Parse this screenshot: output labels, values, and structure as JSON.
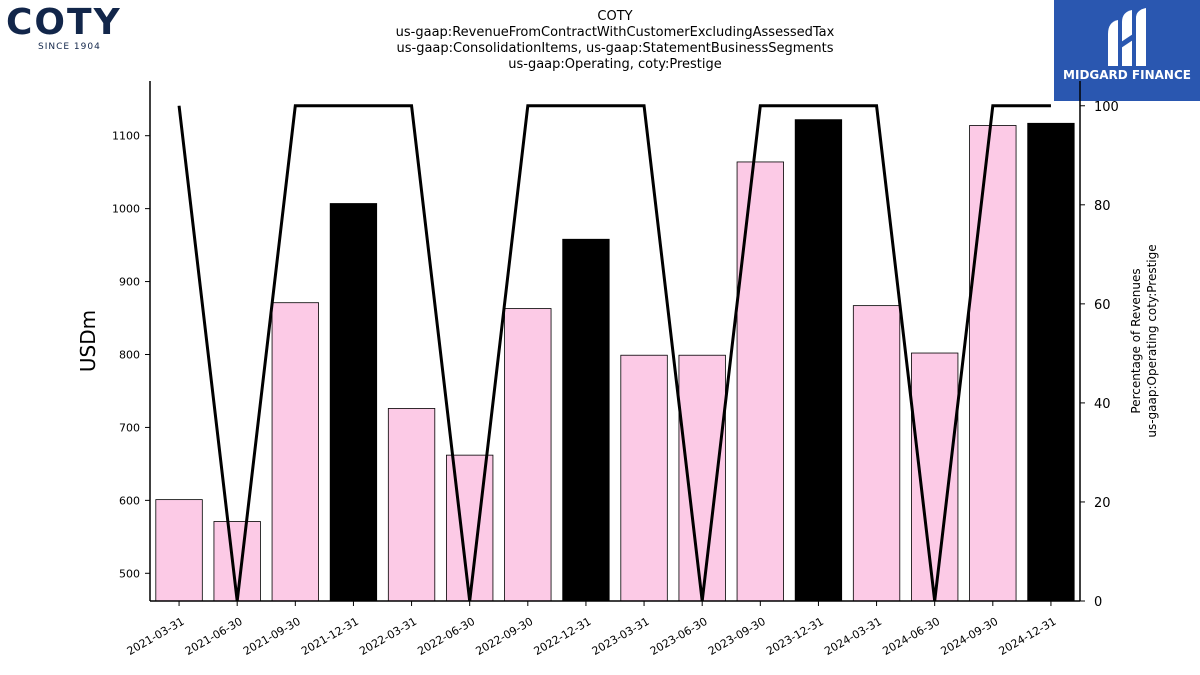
{
  "logos": {
    "left": {
      "word": "COTY",
      "since": "SINCE 1904"
    },
    "right": {
      "text": "MIDGARD FINANCE"
    }
  },
  "chart_data": {
    "type": "bar",
    "title": [
      "COTY",
      "us-gaap:RevenueFromContractWithCustomerExcludingAssessedTax",
      "us-gaap:ConsolidationItems, us-gaap:StatementBusinessSegments",
      "us-gaap:Operating, coty:Prestige"
    ],
    "xlabel": "",
    "ylabel": "USDm",
    "y2label": [
      "Percentage of Revenues",
      "us-gaap:Operating coty:Prestige"
    ],
    "categories": [
      "2021-03-31",
      "2021-06-30",
      "2021-09-30",
      "2021-12-31",
      "2022-03-31",
      "2022-06-30",
      "2022-09-30",
      "2022-12-31",
      "2023-03-31",
      "2023-06-30",
      "2023-09-30",
      "2023-12-31",
      "2024-03-31",
      "2024-06-30",
      "2024-09-30",
      "2024-12-31"
    ],
    "values": [
      601,
      571,
      871,
      1007,
      726,
      662,
      863,
      958,
      799,
      799,
      1064,
      1122,
      867,
      802,
      1114,
      1117
    ],
    "bar_colors": [
      "#fccae6",
      "#fccae6",
      "#fccae6",
      "#000000",
      "#fccae6",
      "#fccae6",
      "#fccae6",
      "#000000",
      "#fccae6",
      "#fccae6",
      "#fccae6",
      "#000000",
      "#fccae6",
      "#fccae6",
      "#fccae6",
      "#000000"
    ],
    "line_series": {
      "values": [
        100,
        0,
        100,
        100,
        100,
        0,
        100,
        100,
        100,
        0,
        100,
        100,
        100,
        0,
        100,
        100
      ],
      "color": "#000000"
    },
    "ylim": [
      462,
      1175
    ],
    "yticks": [
      500,
      600,
      700,
      800,
      900,
      1000,
      1100
    ],
    "y2lim": [
      0,
      105
    ],
    "y2ticks": [
      0,
      20,
      40,
      60,
      80,
      100
    ],
    "grid": false,
    "legend": "none"
  }
}
